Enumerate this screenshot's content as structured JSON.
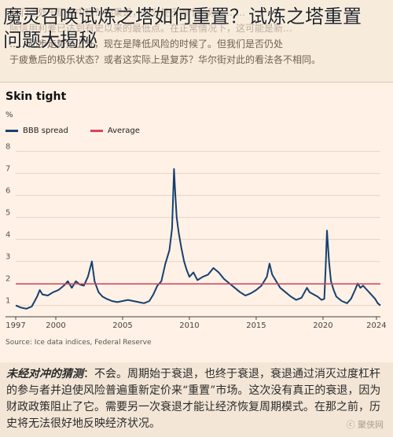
{
  "overlay": {
    "title_line1": "魔灵召唤试炼之塔如何重置？试炼之塔重置",
    "title_line2": "问题大揭秘"
  },
  "article_top": {
    "lines": [
      "我们正处于周期中吗？如果是，那么处于哪个阶段？……",
      "际信用利差已达到有史以来的最低点。在正常情况下，这可能是新…",
      "……起步走势是上升，现在是降低风险的时候了。但我们是否仍处",
      "于疲惫后的极乐状态？或者这实际上是复苏？华尔街对此的看法各不相同。"
    ]
  },
  "chart_header": {
    "title": "Skin tight",
    "unit": "%",
    "legend": [
      {
        "label": "BBB spread",
        "color": "#16406f"
      },
      {
        "label": "Average",
        "color": "#d9435f"
      }
    ],
    "source": "Source: Ice data indices, Federal Reserve"
  },
  "chart_data": {
    "type": "line",
    "title": "Skin tight",
    "xlabel": "",
    "ylabel": "%",
    "x_ticks": [
      "1997",
      "2000",
      "2005",
      "2010",
      "2015",
      "2020",
      "2024"
    ],
    "y_ticks": [
      "1",
      "2",
      "3",
      "4",
      "5",
      "6",
      "7",
      "8"
    ],
    "xlim": [
      1997,
      2024.3
    ],
    "ylim": [
      0.7,
      8.2
    ],
    "grid": true,
    "series": [
      {
        "name": "BBB spread",
        "color": "#16406f",
        "x": [
          1997.0,
          1997.4,
          1997.8,
          1998.2,
          1998.6,
          1998.8,
          1999.0,
          1999.4,
          1999.8,
          2000.2,
          2000.6,
          2000.9,
          2001.2,
          2001.5,
          2001.8,
          2002.1,
          2002.4,
          2002.7,
          2002.9,
          2003.2,
          2003.5,
          2003.8,
          2004.2,
          2004.6,
          2005.0,
          2005.4,
          2005.8,
          2006.2,
          2006.6,
          2007.0,
          2007.3,
          2007.6,
          2007.9,
          2008.2,
          2008.5,
          2008.7,
          2008.85,
          2008.95,
          2009.05,
          2009.2,
          2009.4,
          2009.6,
          2009.8,
          2010.0,
          2010.3,
          2010.6,
          2011.0,
          2011.4,
          2011.8,
          2012.2,
          2012.6,
          2013.0,
          2013.4,
          2013.8,
          2014.2,
          2014.6,
          2015.0,
          2015.4,
          2015.8,
          2016.0,
          2016.2,
          2016.5,
          2016.8,
          2017.2,
          2017.6,
          2018.0,
          2018.4,
          2018.8,
          2019.0,
          2019.3,
          2019.6,
          2019.9,
          2020.1,
          2020.2,
          2020.3,
          2020.45,
          2020.6,
          2020.8,
          2021.0,
          2021.4,
          2021.8,
          2022.1,
          2022.4,
          2022.6,
          2022.8,
          2023.0,
          2023.3,
          2023.6,
          2023.9,
          2024.1,
          2024.3
        ],
        "values": [
          1.0,
          0.9,
          0.85,
          0.95,
          1.4,
          1.7,
          1.5,
          1.45,
          1.6,
          1.7,
          1.9,
          2.1,
          1.8,
          2.1,
          1.95,
          1.9,
          2.3,
          3.0,
          2.1,
          1.6,
          1.4,
          1.3,
          1.2,
          1.15,
          1.2,
          1.25,
          1.2,
          1.15,
          1.1,
          1.2,
          1.5,
          1.9,
          2.1,
          2.9,
          3.5,
          4.5,
          7.2,
          6.0,
          5.0,
          4.3,
          3.6,
          3.0,
          2.6,
          2.3,
          2.5,
          2.15,
          2.3,
          2.4,
          2.7,
          2.5,
          2.2,
          2.0,
          1.8,
          1.6,
          1.45,
          1.55,
          1.7,
          1.9,
          2.3,
          2.9,
          2.4,
          2.1,
          1.8,
          1.6,
          1.4,
          1.25,
          1.35,
          1.8,
          1.6,
          1.5,
          1.4,
          1.25,
          1.3,
          2.7,
          4.4,
          3.0,
          2.1,
          1.7,
          1.4,
          1.2,
          1.1,
          1.3,
          1.7,
          2.0,
          1.8,
          1.9,
          1.7,
          1.5,
          1.3,
          1.1,
          1.0
        ]
      },
      {
        "name": "Average",
        "color": "#d9435f",
        "x": [
          1997.0,
          2024.3
        ],
        "values": [
          1.98,
          1.98
        ]
      }
    ]
  },
  "bottom_text": {
    "lead": "未经对冲的猜测",
    "body": "：不会。周期始于衰退，也终于衰退，衰退通过消灭过度杠杆的参与者并迫使风险普遍重新定价来“重置”市场。这次没有真正的衰退，因为财政政策阻止了它。需要另一次衰退才能让经济恢复周期模式。在那之前，历史将无法很好地反映经济状况。"
  },
  "watermark": "ⓒ 聚侠网"
}
